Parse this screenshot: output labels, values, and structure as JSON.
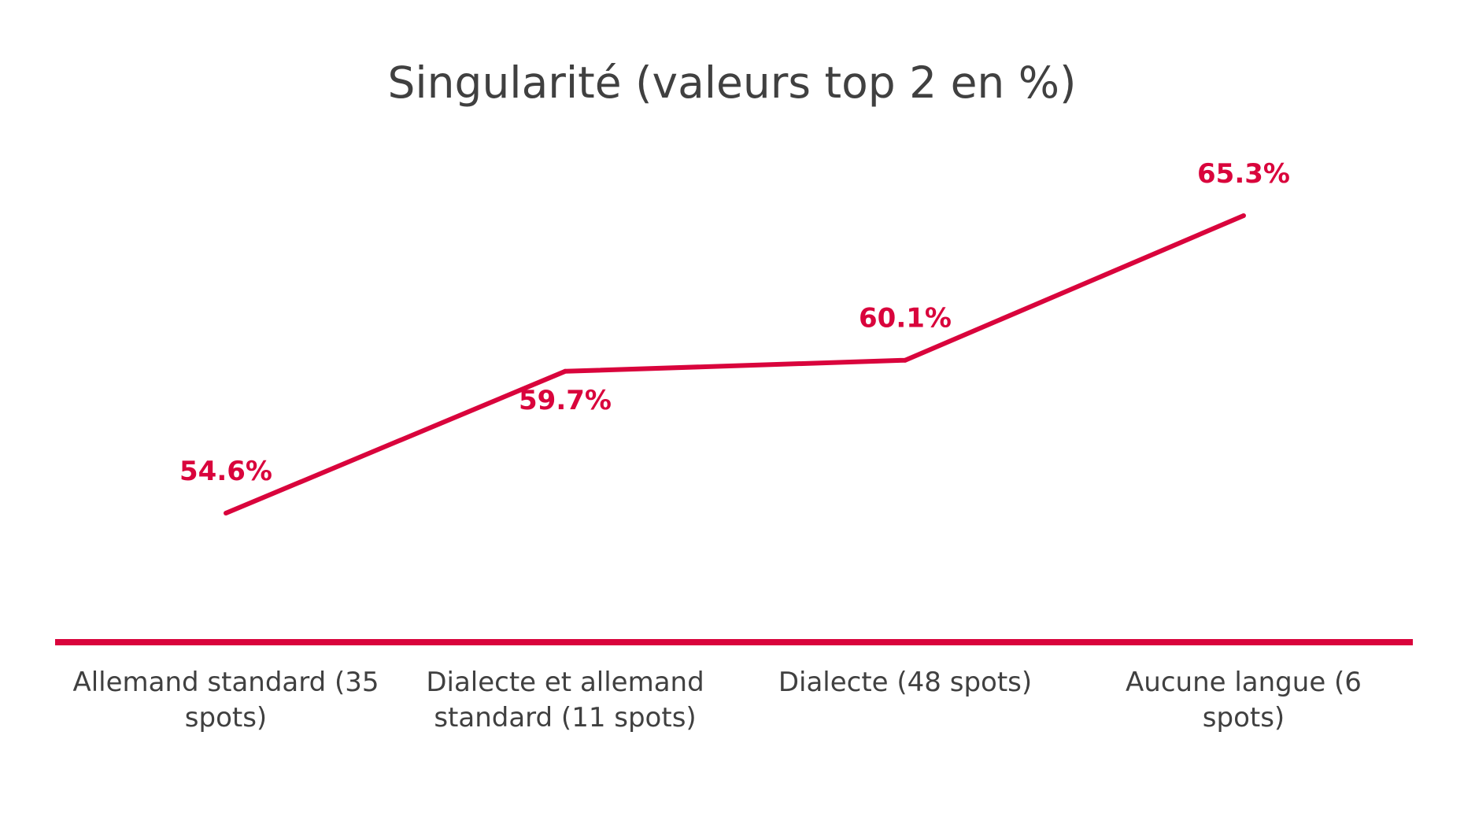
{
  "chart_data": {
    "type": "line",
    "title": "Singularité (valeurs top 2 en %)",
    "categories": [
      [
        "Allemand standard (35",
        "spots)"
      ],
      [
        "Dialecte et allemand",
        "standard (11 spots)"
      ],
      [
        "Dialecte (48 spots)"
      ],
      [
        "Aucune langue (6",
        "spots)"
      ]
    ],
    "series": [
      {
        "values": [
          54.6,
          59.7,
          60.1,
          65.3
        ],
        "labels": [
          "54.6%",
          "59.7%",
          "60.1%",
          "65.3%"
        ],
        "color": "#d9043c"
      }
    ],
    "ylim": [
      45,
      67
    ],
    "grid": false,
    "legend": "none",
    "baseline_color": "#d9043c"
  }
}
